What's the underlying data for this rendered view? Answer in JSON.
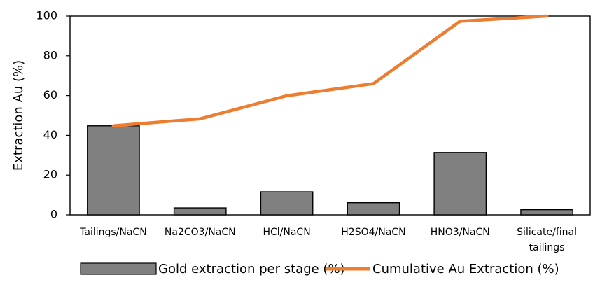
{
  "chart_data": {
    "type": "bar",
    "categories": [
      [
        "Tailings/NaCN"
      ],
      [
        "Na2CO3/NaCN"
      ],
      [
        "HCl/NaCN"
      ],
      [
        "H2SO4/NaCN"
      ],
      [
        "HNO3/NaCN"
      ],
      [
        "Silicate/final",
        "tailings"
      ]
    ],
    "series": [
      {
        "name": "Gold extraction per stage (%)",
        "type": "bar",
        "values": [
          44.8,
          3.5,
          11.6,
          6.1,
          31.4,
          2.6
        ],
        "color": "#808080"
      },
      {
        "name": "Cumulative Au Extraction (%)",
        "type": "line",
        "values": [
          44.8,
          48.3,
          59.9,
          66.0,
          97.4,
          100.0
        ],
        "color": "#ED7D31"
      }
    ],
    "xlabel": "",
    "ylabel": "Extraction Au (%)",
    "ylim": [
      0,
      100
    ],
    "yticks": [
      0,
      20,
      40,
      60,
      80,
      100
    ],
    "grid": false,
    "legend": "bottom"
  }
}
